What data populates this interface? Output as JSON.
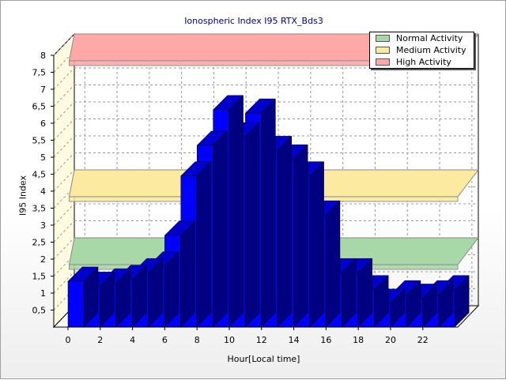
{
  "chart_data": {
    "type": "bar",
    "title": "Ionospheric Index I95 RTX_Bds3",
    "xlabel": "Hour[Local time]",
    "ylabel": "I95 Index",
    "ylim": [
      0,
      8
    ],
    "y_ticks": [
      "0,5",
      "1",
      "1,5",
      "2",
      "2,5",
      "3",
      "3,5",
      "4",
      "4,5",
      "5",
      "5,5",
      "6",
      "6,5",
      "7",
      "7,5",
      "8"
    ],
    "x_ticks": [
      "0",
      "2",
      "4",
      "6",
      "8",
      "10",
      "12",
      "14",
      "16",
      "18",
      "20",
      "22"
    ],
    "categories": [
      "0",
      "1",
      "2",
      "3",
      "4",
      "5",
      "6",
      "7",
      "8",
      "9",
      "10",
      "11",
      "12",
      "13",
      "14",
      "15",
      "16",
      "17",
      "18",
      "19",
      "20",
      "21",
      "22",
      "23"
    ],
    "series": [
      {
        "values": [
          1.35,
          1.2,
          1.3,
          1.4,
          1.6,
          1.8,
          2.7,
          4.45,
          5.35,
          6.4,
          5.6,
          6.3,
          5.2,
          4.95,
          4.45,
          3.3,
          1.6,
          1.6,
          1.1,
          0.7,
          0.95,
          0.85,
          0.95,
          1.1
        ],
        "color": "#0000ff"
      }
    ],
    "bands": [
      {
        "name": "Normal Activity",
        "value": 2.0,
        "color": "#a8d8a8"
      },
      {
        "name": "Medium Activity",
        "value": 4.0,
        "color": "#fbeaa0"
      },
      {
        "name": "High Activity",
        "value": 8.0,
        "color": "#ffa8a8"
      }
    ],
    "grid": true,
    "legend_position": "top-right"
  }
}
